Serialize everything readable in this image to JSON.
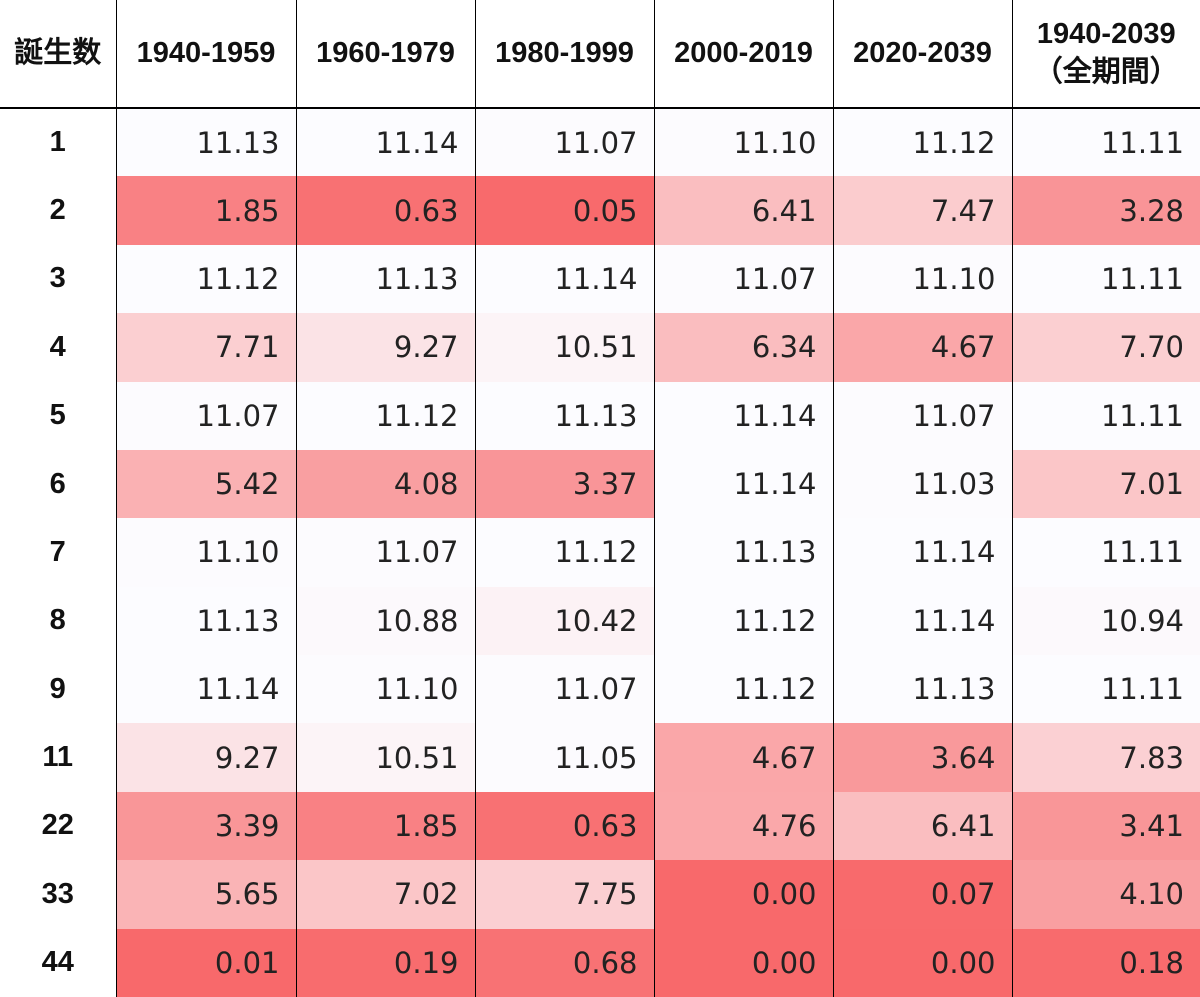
{
  "chart_data": {
    "type": "heatmap",
    "corner_header": "誕生数",
    "columns": [
      {
        "label": "1940-1959"
      },
      {
        "label": "1960-1979"
      },
      {
        "label": "1980-1999"
      },
      {
        "label": "2000-2019"
      },
      {
        "label": "2020-2039"
      },
      {
        "label": "1940-2039",
        "sub": "（全期間）"
      }
    ],
    "rows": [
      {
        "label": "1",
        "values": [
          11.13,
          11.14,
          11.07,
          11.1,
          11.12,
          11.11
        ]
      },
      {
        "label": "2",
        "values": [
          1.85,
          0.63,
          0.05,
          6.41,
          7.47,
          3.28
        ]
      },
      {
        "label": "3",
        "values": [
          11.12,
          11.13,
          11.14,
          11.07,
          11.1,
          11.11
        ]
      },
      {
        "label": "4",
        "values": [
          7.71,
          9.27,
          10.51,
          6.34,
          4.67,
          7.7
        ]
      },
      {
        "label": "5",
        "values": [
          11.07,
          11.12,
          11.13,
          11.14,
          11.07,
          11.11
        ]
      },
      {
        "label": "6",
        "values": [
          5.42,
          4.08,
          3.37,
          11.14,
          11.03,
          7.01
        ]
      },
      {
        "label": "7",
        "values": [
          11.1,
          11.07,
          11.12,
          11.13,
          11.14,
          11.11
        ]
      },
      {
        "label": "8",
        "values": [
          11.13,
          10.88,
          10.42,
          11.12,
          11.14,
          10.94
        ]
      },
      {
        "label": "9",
        "values": [
          11.14,
          11.1,
          11.07,
          11.12,
          11.13,
          11.11
        ]
      },
      {
        "label": "11",
        "values": [
          9.27,
          10.51,
          11.05,
          4.67,
          3.64,
          7.83
        ]
      },
      {
        "label": "22",
        "values": [
          3.39,
          1.85,
          0.63,
          4.76,
          6.41,
          3.41
        ]
      },
      {
        "label": "33",
        "values": [
          5.65,
          7.02,
          7.75,
          0.0,
          0.07,
          4.1
        ]
      },
      {
        "label": "44",
        "values": [
          0.01,
          0.19,
          0.68,
          0.0,
          0.0,
          0.18
        ]
      }
    ],
    "color_scale": {
      "min": 0.0,
      "max": 11.14,
      "low_color": "#f8696b",
      "high_color": "#fcfcff"
    }
  }
}
